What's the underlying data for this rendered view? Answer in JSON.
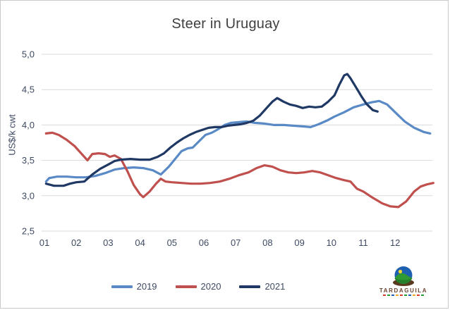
{
  "chart_data": {
    "type": "line",
    "title": "Steer in Uruguay",
    "ylabel": "US$/k cwt",
    "xlabel": "",
    "ylim": [
      2.5,
      5.0
    ],
    "xlim": [
      1,
      13.35
    ],
    "grid": "horizontal-only",
    "legend_position": "bottom-center",
    "y_ticks": [
      {
        "value": 5.0,
        "label": "5,0"
      },
      {
        "value": 4.5,
        "label": "4,5"
      },
      {
        "value": 4.0,
        "label": "4,0"
      },
      {
        "value": 3.5,
        "label": "3,5"
      },
      {
        "value": 3.0,
        "label": "3,0"
      },
      {
        "value": 2.5,
        "label": "2,5"
      }
    ],
    "x_ticks": [
      {
        "value": 1,
        "label": "01"
      },
      {
        "value": 2,
        "label": "02"
      },
      {
        "value": 3,
        "label": "03"
      },
      {
        "value": 4,
        "label": "04"
      },
      {
        "value": 5,
        "label": "05"
      },
      {
        "value": 6,
        "label": "06"
      },
      {
        "value": 7,
        "label": "07"
      },
      {
        "value": 8,
        "label": "08"
      },
      {
        "value": 9,
        "label": "09"
      },
      {
        "value": 10,
        "label": "10"
      },
      {
        "value": 11,
        "label": "11"
      },
      {
        "value": 12,
        "label": "12"
      }
    ],
    "x_unit": "month (01-12), data weekly",
    "y_unit": "US$/k cwt",
    "series": [
      {
        "name": "2019",
        "color": "#5a8ac6",
        "points": [
          [
            1.05,
            3.2
          ],
          [
            1.15,
            3.25
          ],
          [
            1.4,
            3.27
          ],
          [
            1.7,
            3.27
          ],
          [
            2.0,
            3.26
          ],
          [
            2.3,
            3.26
          ],
          [
            2.6,
            3.28
          ],
          [
            2.9,
            3.32
          ],
          [
            3.2,
            3.37
          ],
          [
            3.5,
            3.39
          ],
          [
            3.8,
            3.4
          ],
          [
            4.1,
            3.39
          ],
          [
            4.4,
            3.36
          ],
          [
            4.65,
            3.3
          ],
          [
            4.9,
            3.41
          ],
          [
            5.1,
            3.52
          ],
          [
            5.3,
            3.63
          ],
          [
            5.5,
            3.67
          ],
          [
            5.65,
            3.68
          ],
          [
            5.85,
            3.77
          ],
          [
            6.05,
            3.86
          ],
          [
            6.25,
            3.89
          ],
          [
            6.45,
            3.94
          ],
          [
            6.65,
            4.0
          ],
          [
            6.85,
            4.03
          ],
          [
            7.1,
            4.04
          ],
          [
            7.35,
            4.05
          ],
          [
            7.6,
            4.03
          ],
          [
            7.9,
            4.02
          ],
          [
            8.2,
            4.0
          ],
          [
            8.5,
            4.0
          ],
          [
            8.8,
            3.99
          ],
          [
            9.1,
            3.98
          ],
          [
            9.35,
            3.97
          ],
          [
            9.6,
            4.01
          ],
          [
            9.85,
            4.06
          ],
          [
            10.1,
            4.12
          ],
          [
            10.4,
            4.18
          ],
          [
            10.7,
            4.25
          ],
          [
            11.0,
            4.29
          ],
          [
            11.25,
            4.32
          ],
          [
            11.5,
            4.34
          ],
          [
            11.75,
            4.29
          ],
          [
            12.0,
            4.18
          ],
          [
            12.3,
            4.05
          ],
          [
            12.6,
            3.96
          ],
          [
            12.9,
            3.9
          ],
          [
            13.1,
            3.88
          ]
        ]
      },
      {
        "name": "2020",
        "color": "#c0504d",
        "points": [
          [
            1.05,
            3.88
          ],
          [
            1.25,
            3.89
          ],
          [
            1.45,
            3.86
          ],
          [
            1.7,
            3.79
          ],
          [
            1.95,
            3.7
          ],
          [
            2.15,
            3.6
          ],
          [
            2.35,
            3.5
          ],
          [
            2.5,
            3.59
          ],
          [
            2.7,
            3.6
          ],
          [
            2.9,
            3.59
          ],
          [
            3.05,
            3.55
          ],
          [
            3.2,
            3.57
          ],
          [
            3.4,
            3.52
          ],
          [
            3.6,
            3.35
          ],
          [
            3.8,
            3.15
          ],
          [
            4.0,
            3.02
          ],
          [
            4.1,
            2.98
          ],
          [
            4.3,
            3.06
          ],
          [
            4.5,
            3.17
          ],
          [
            4.65,
            3.24
          ],
          [
            4.8,
            3.2
          ],
          [
            5.0,
            3.19
          ],
          [
            5.3,
            3.18
          ],
          [
            5.6,
            3.17
          ],
          [
            5.9,
            3.17
          ],
          [
            6.2,
            3.18
          ],
          [
            6.5,
            3.2
          ],
          [
            6.8,
            3.24
          ],
          [
            7.1,
            3.29
          ],
          [
            7.4,
            3.33
          ],
          [
            7.65,
            3.39
          ],
          [
            7.9,
            3.43
          ],
          [
            8.15,
            3.41
          ],
          [
            8.4,
            3.36
          ],
          [
            8.65,
            3.33
          ],
          [
            8.9,
            3.32
          ],
          [
            9.15,
            3.33
          ],
          [
            9.4,
            3.35
          ],
          [
            9.65,
            3.33
          ],
          [
            9.9,
            3.29
          ],
          [
            10.15,
            3.25
          ],
          [
            10.4,
            3.22
          ],
          [
            10.6,
            3.2
          ],
          [
            10.8,
            3.1
          ],
          [
            11.0,
            3.06
          ],
          [
            11.3,
            2.97
          ],
          [
            11.6,
            2.89
          ],
          [
            11.85,
            2.85
          ],
          [
            12.1,
            2.84
          ],
          [
            12.35,
            2.92
          ],
          [
            12.6,
            3.06
          ],
          [
            12.8,
            3.13
          ],
          [
            13.0,
            3.16
          ],
          [
            13.2,
            3.18
          ]
        ]
      },
      {
        "name": "2021",
        "color": "#1f3864",
        "points": [
          [
            1.05,
            3.17
          ],
          [
            1.3,
            3.14
          ],
          [
            1.6,
            3.14
          ],
          [
            1.8,
            3.17
          ],
          [
            2.0,
            3.19
          ],
          [
            2.25,
            3.2
          ],
          [
            2.5,
            3.3
          ],
          [
            2.75,
            3.38
          ],
          [
            3.0,
            3.44
          ],
          [
            3.2,
            3.49
          ],
          [
            3.4,
            3.51
          ],
          [
            3.7,
            3.52
          ],
          [
            4.0,
            3.51
          ],
          [
            4.3,
            3.51
          ],
          [
            4.55,
            3.55
          ],
          [
            4.75,
            3.6
          ],
          [
            4.95,
            3.68
          ],
          [
            5.15,
            3.75
          ],
          [
            5.35,
            3.81
          ],
          [
            5.55,
            3.86
          ],
          [
            5.75,
            3.9
          ],
          [
            5.95,
            3.93
          ],
          [
            6.15,
            3.96
          ],
          [
            6.35,
            3.97
          ],
          [
            6.55,
            3.97
          ],
          [
            6.75,
            3.99
          ],
          [
            6.95,
            4.0
          ],
          [
            7.15,
            4.01
          ],
          [
            7.35,
            4.03
          ],
          [
            7.55,
            4.06
          ],
          [
            7.75,
            4.13
          ],
          [
            7.95,
            4.23
          ],
          [
            8.15,
            4.33
          ],
          [
            8.3,
            4.38
          ],
          [
            8.5,
            4.33
          ],
          [
            8.7,
            4.29
          ],
          [
            8.9,
            4.27
          ],
          [
            9.1,
            4.24
          ],
          [
            9.3,
            4.26
          ],
          [
            9.5,
            4.25
          ],
          [
            9.7,
            4.26
          ],
          [
            9.9,
            4.33
          ],
          [
            10.1,
            4.42
          ],
          [
            10.25,
            4.57
          ],
          [
            10.4,
            4.7
          ],
          [
            10.5,
            4.72
          ],
          [
            10.6,
            4.66
          ],
          [
            10.75,
            4.55
          ],
          [
            10.95,
            4.4
          ],
          [
            11.1,
            4.3
          ],
          [
            11.3,
            4.21
          ],
          [
            11.45,
            4.19
          ]
        ]
      }
    ]
  },
  "branding": {
    "logo_text": "TARDAGUILA"
  },
  "colors": {
    "grid": "#d9d9d9",
    "title": "#404040",
    "axis_text": "#3e4a63",
    "border": "#c9c9c9",
    "logo_word": "#6d4530"
  }
}
